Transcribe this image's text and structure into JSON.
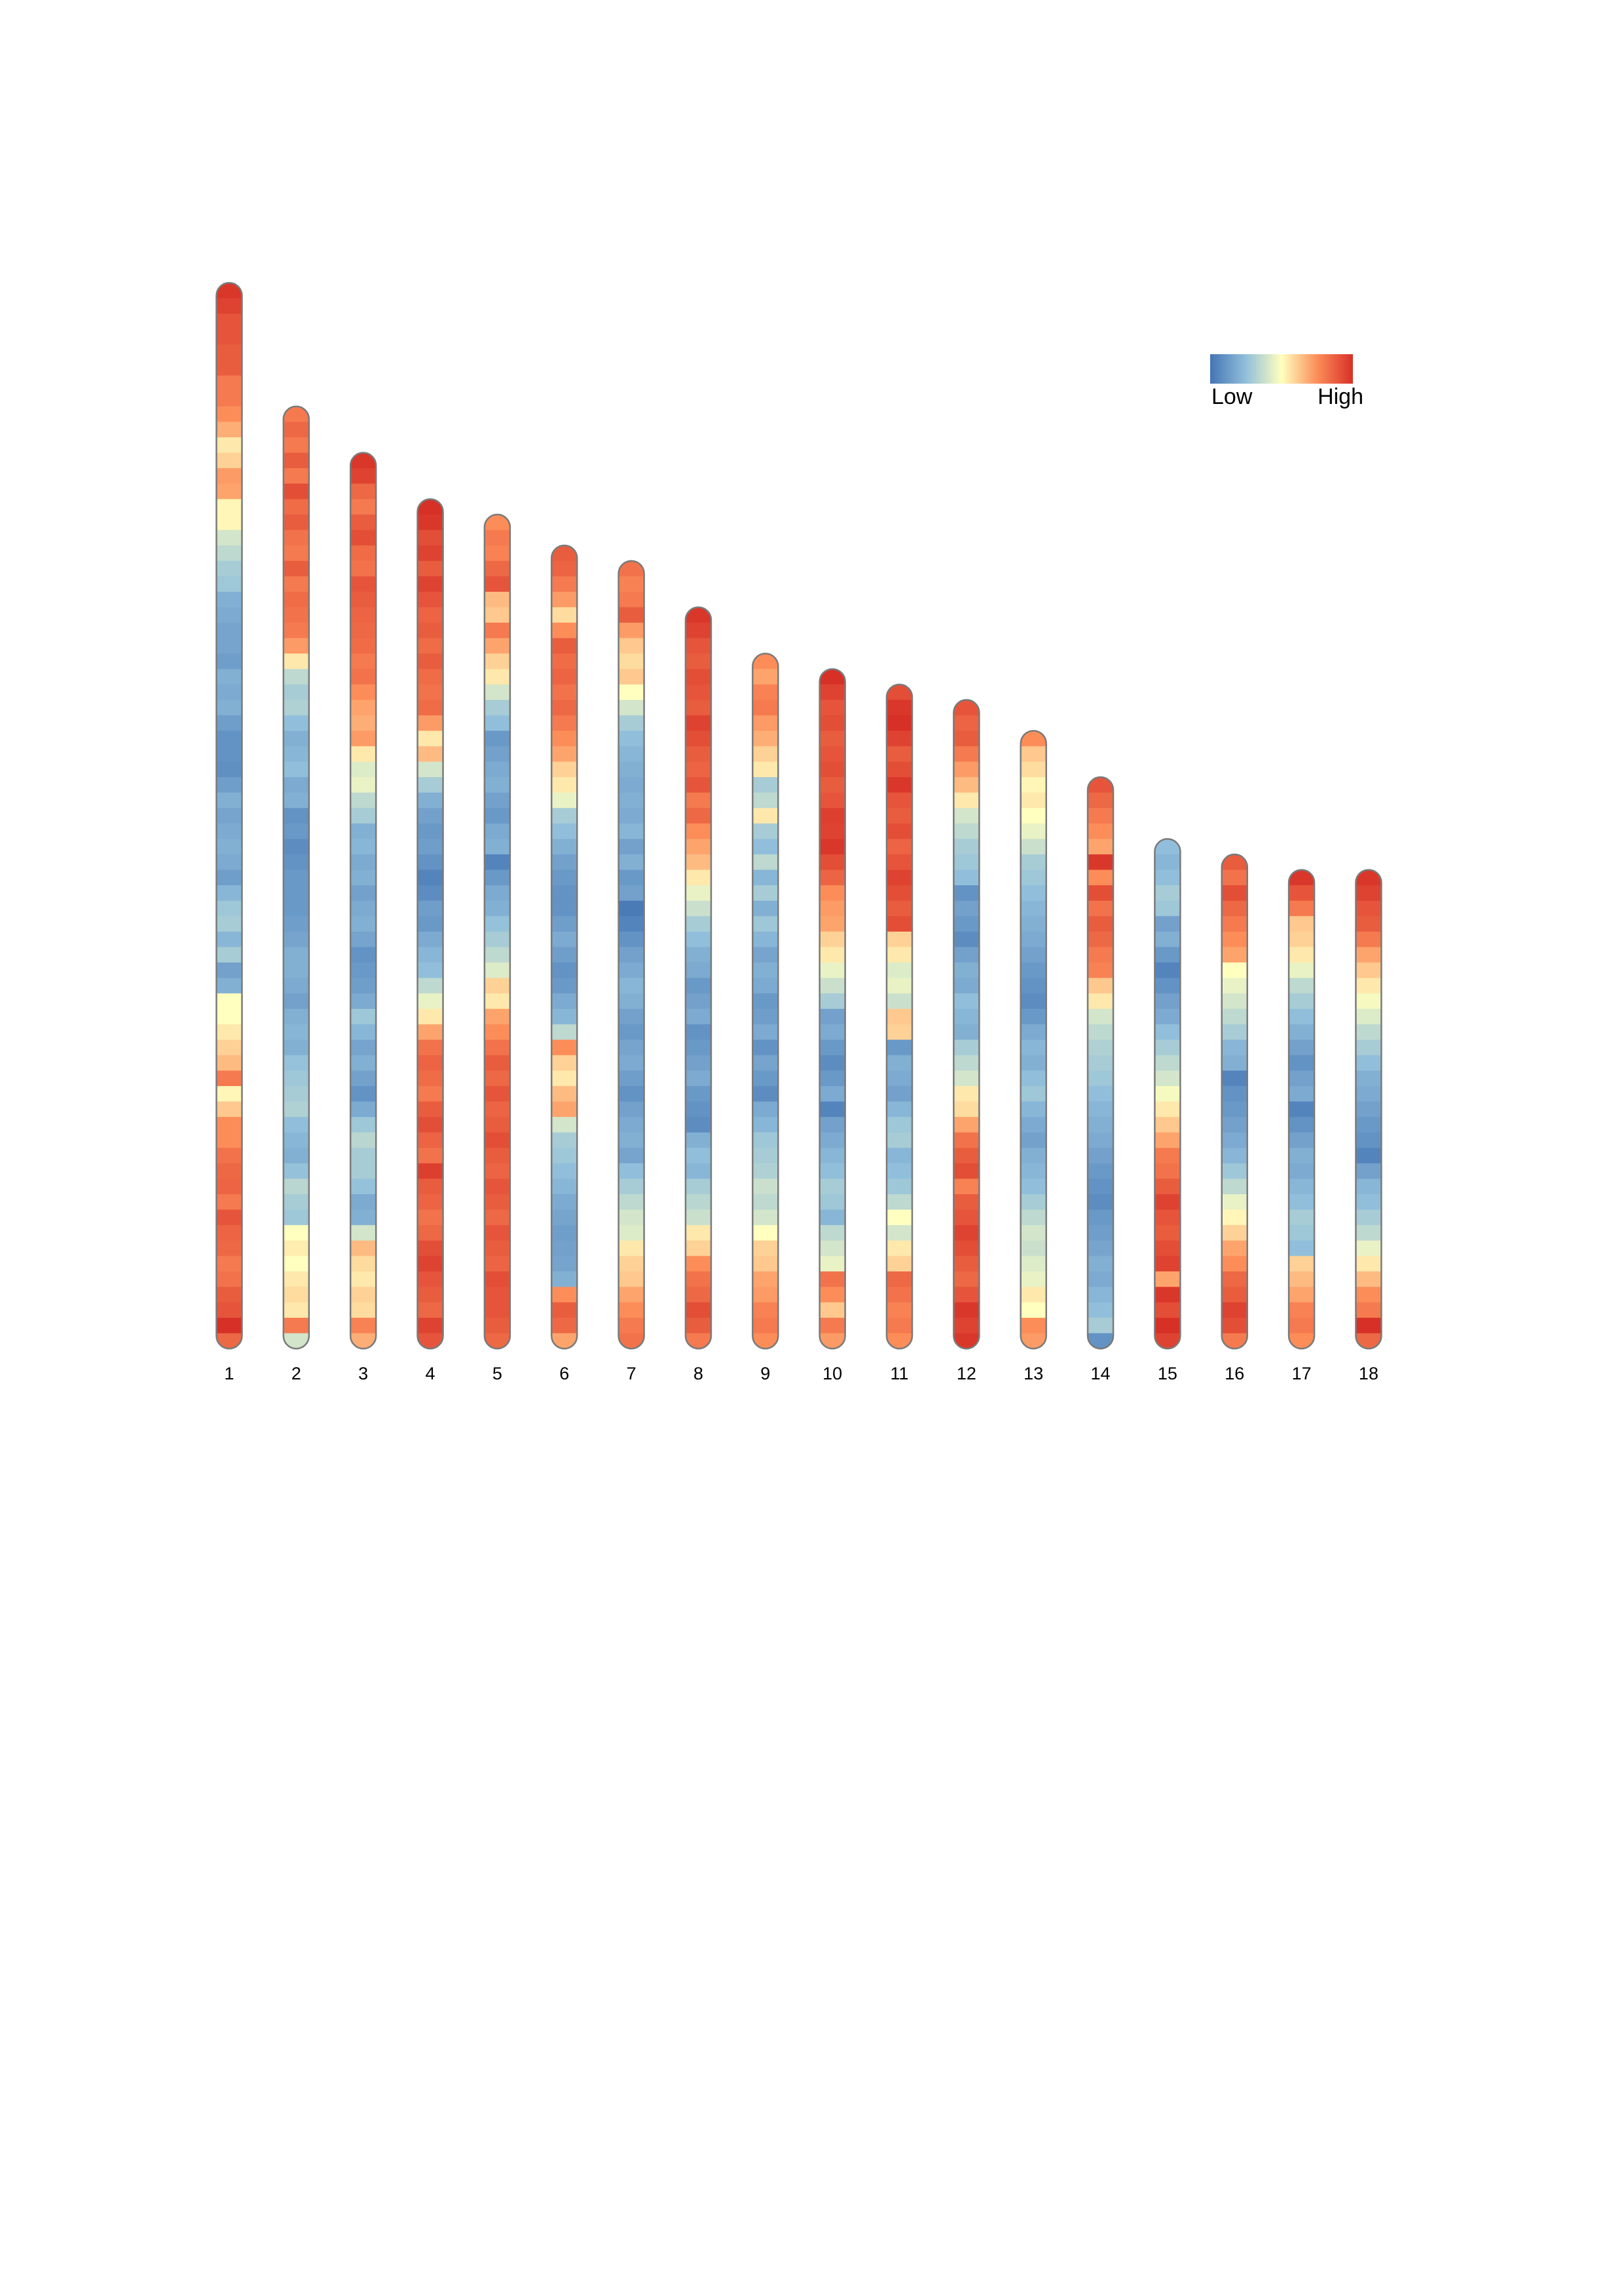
{
  "chart_data": {
    "type": "heatmap",
    "title": "",
    "chromosomes": [
      {
        "label": "1",
        "length": 69,
        "values": [
          0.98,
          0.95,
          0.9,
          0.9,
          0.88,
          0.88,
          0.8,
          0.8,
          0.75,
          0.68,
          0.55,
          0.6,
          0.72,
          0.7,
          0.52,
          0.52,
          0.4,
          0.35,
          0.3,
          0.28,
          0.2,
          0.18,
          0.16,
          0.16,
          0.14,
          0.2,
          0.18,
          0.2,
          0.14,
          0.1,
          0.1,
          0.09,
          0.14,
          0.2,
          0.16,
          0.18,
          0.2,
          0.18,
          0.14,
          0.22,
          0.28,
          0.3,
          0.22,
          0.3,
          0.15,
          0.2,
          0.5,
          0.5,
          0.55,
          0.6,
          0.65,
          0.8,
          0.52,
          0.62,
          0.75,
          0.75,
          0.82,
          0.85,
          0.86,
          0.8,
          0.9,
          0.86,
          0.85,
          0.8,
          0.82,
          0.88,
          0.9,
          1.0,
          0.85
        ]
      },
      {
        "label": "2",
        "length": 61,
        "values": [
          0.8,
          0.85,
          0.8,
          0.88,
          0.8,
          0.92,
          0.84,
          0.88,
          0.82,
          0.8,
          0.88,
          0.8,
          0.84,
          0.82,
          0.8,
          0.72,
          0.55,
          0.35,
          0.3,
          0.32,
          0.25,
          0.2,
          0.22,
          0.25,
          0.18,
          0.2,
          0.1,
          0.12,
          0.08,
          0.1,
          0.12,
          0.12,
          0.12,
          0.14,
          0.16,
          0.2,
          0.2,
          0.18,
          0.15,
          0.2,
          0.22,
          0.2,
          0.26,
          0.28,
          0.3,
          0.32,
          0.25,
          0.22,
          0.2,
          0.26,
          0.34,
          0.3,
          0.28,
          0.5,
          0.54,
          0.5,
          0.55,
          0.58,
          0.55,
          0.8,
          0.4
        ]
      },
      {
        "label": "3",
        "length": 58,
        "values": [
          0.98,
          0.95,
          0.85,
          0.8,
          0.88,
          0.92,
          0.84,
          0.82,
          0.9,
          0.88,
          0.86,
          0.85,
          0.84,
          0.8,
          0.82,
          0.75,
          0.7,
          0.68,
          0.72,
          0.55,
          0.42,
          0.45,
          0.35,
          0.3,
          0.2,
          0.22,
          0.18,
          0.2,
          0.15,
          0.18,
          0.2,
          0.16,
          0.1,
          0.12,
          0.14,
          0.18,
          0.28,
          0.22,
          0.16,
          0.2,
          0.15,
          0.1,
          0.18,
          0.28,
          0.34,
          0.3,
          0.3,
          0.26,
          0.18,
          0.2,
          0.4,
          0.65,
          0.58,
          0.55,
          0.6,
          0.58,
          0.78,
          0.68
        ]
      },
      {
        "label": "4",
        "length": 55,
        "values": [
          1.0,
          0.98,
          0.92,
          0.95,
          0.88,
          0.95,
          0.9,
          0.86,
          0.88,
          0.84,
          0.88,
          0.84,
          0.82,
          0.84,
          0.72,
          0.55,
          0.65,
          0.4,
          0.3,
          0.2,
          0.15,
          0.12,
          0.14,
          0.1,
          0.05,
          0.08,
          0.14,
          0.12,
          0.18,
          0.22,
          0.25,
          0.35,
          0.45,
          0.55,
          0.7,
          0.82,
          0.86,
          0.84,
          0.8,
          0.88,
          0.92,
          0.86,
          0.82,
          0.96,
          0.88,
          0.86,
          0.82,
          0.85,
          0.92,
          0.95,
          0.9,
          0.88,
          0.85,
          0.95,
          0.9
        ]
      },
      {
        "label": "5",
        "length": 54,
        "values": [
          0.75,
          0.8,
          0.78,
          0.85,
          0.9,
          0.65,
          0.62,
          0.8,
          0.7,
          0.6,
          0.55,
          0.4,
          0.3,
          0.25,
          0.12,
          0.15,
          0.18,
          0.2,
          0.15,
          0.12,
          0.18,
          0.2,
          0.05,
          0.12,
          0.18,
          0.2,
          0.26,
          0.3,
          0.35,
          0.42,
          0.6,
          0.55,
          0.7,
          0.75,
          0.82,
          0.88,
          0.85,
          0.9,
          0.86,
          0.88,
          0.92,
          0.88,
          0.86,
          0.9,
          0.88,
          0.85,
          0.9,
          0.88,
          0.86,
          0.92,
          0.9,
          0.9,
          0.88,
          0.85
        ]
      },
      {
        "label": "6",
        "length": 52,
        "values": [
          0.88,
          0.86,
          0.8,
          0.72,
          0.58,
          0.75,
          0.88,
          0.84,
          0.86,
          0.82,
          0.85,
          0.8,
          0.75,
          0.7,
          0.6,
          0.55,
          0.45,
          0.3,
          0.25,
          0.2,
          0.15,
          0.12,
          0.1,
          0.1,
          0.14,
          0.18,
          0.14,
          0.1,
          0.12,
          0.18,
          0.22,
          0.35,
          0.75,
          0.6,
          0.55,
          0.65,
          0.7,
          0.4,
          0.3,
          0.28,
          0.25,
          0.22,
          0.18,
          0.16,
          0.14,
          0.15,
          0.16,
          0.2,
          0.75,
          0.88,
          0.85,
          0.7
        ]
      },
      {
        "label": "7",
        "length": 51,
        "values": [
          0.82,
          0.78,
          0.8,
          0.88,
          0.72,
          0.62,
          0.58,
          0.62,
          0.5,
          0.4,
          0.3,
          0.25,
          0.22,
          0.2,
          0.18,
          0.2,
          0.18,
          0.22,
          0.15,
          0.2,
          0.12,
          0.15,
          0.02,
          0.05,
          0.1,
          0.15,
          0.18,
          0.22,
          0.2,
          0.15,
          0.12,
          0.16,
          0.18,
          0.14,
          0.1,
          0.15,
          0.18,
          0.2,
          0.16,
          0.25,
          0.3,
          0.35,
          0.4,
          0.42,
          0.55,
          0.6,
          0.62,
          0.7,
          0.75,
          0.8,
          0.82
        ]
      },
      {
        "label": "8",
        "length": 48,
        "values": [
          0.98,
          0.95,
          0.9,
          0.88,
          0.92,
          0.9,
          0.88,
          0.95,
          0.92,
          0.88,
          0.86,
          0.9,
          0.8,
          0.85,
          0.75,
          0.7,
          0.65,
          0.55,
          0.45,
          0.38,
          0.3,
          0.25,
          0.2,
          0.18,
          0.12,
          0.15,
          0.18,
          0.1,
          0.12,
          0.15,
          0.18,
          0.12,
          0.1,
          0.08,
          0.2,
          0.25,
          0.22,
          0.3,
          0.34,
          0.38,
          0.55,
          0.6,
          0.75,
          0.82,
          0.85,
          0.92,
          0.88,
          0.8
        ]
      },
      {
        "label": "9",
        "length": 45,
        "values": [
          0.75,
          0.7,
          0.78,
          0.8,
          0.72,
          0.68,
          0.6,
          0.55,
          0.3,
          0.35,
          0.55,
          0.3,
          0.25,
          0.35,
          0.22,
          0.3,
          0.2,
          0.28,
          0.22,
          0.16,
          0.2,
          0.18,
          0.12,
          0.14,
          0.18,
          0.1,
          0.16,
          0.12,
          0.08,
          0.18,
          0.22,
          0.28,
          0.3,
          0.32,
          0.38,
          0.35,
          0.4,
          0.5,
          0.6,
          0.62,
          0.7,
          0.72,
          0.78,
          0.8,
          0.75
        ]
      },
      {
        "label": "10",
        "length": 44,
        "values": [
          1.0,
          0.95,
          0.9,
          0.92,
          0.88,
          0.9,
          0.92,
          0.88,
          0.9,
          0.96,
          0.95,
          0.98,
          0.92,
          0.86,
          0.75,
          0.72,
          0.7,
          0.6,
          0.55,
          0.45,
          0.38,
          0.3,
          0.15,
          0.18,
          0.12,
          0.08,
          0.12,
          0.18,
          0.05,
          0.15,
          0.18,
          0.22,
          0.25,
          0.3,
          0.28,
          0.22,
          0.35,
          0.4,
          0.45,
          0.82,
          0.75,
          0.62,
          0.8,
          0.72
        ]
      },
      {
        "label": "11",
        "length": 43,
        "values": [
          0.92,
          0.98,
          1.0,
          0.95,
          0.88,
          0.92,
          0.98,
          0.9,
          0.88,
          0.92,
          0.86,
          0.9,
          0.95,
          0.92,
          0.88,
          0.92,
          0.6,
          0.55,
          0.42,
          0.45,
          0.38,
          0.62,
          0.6,
          0.12,
          0.2,
          0.18,
          0.15,
          0.22,
          0.28,
          0.3,
          0.22,
          0.25,
          0.28,
          0.35,
          0.5,
          0.4,
          0.55,
          0.6,
          0.85,
          0.82,
          0.78,
          0.8,
          0.75
        ]
      },
      {
        "label": "12",
        "length": 42,
        "values": [
          0.9,
          0.86,
          0.88,
          0.8,
          0.72,
          0.65,
          0.55,
          0.4,
          0.35,
          0.3,
          0.28,
          0.25,
          0.1,
          0.15,
          0.12,
          0.08,
          0.15,
          0.2,
          0.18,
          0.25,
          0.22,
          0.2,
          0.3,
          0.35,
          0.4,
          0.55,
          0.58,
          0.7,
          0.82,
          0.88,
          0.92,
          0.78,
          0.88,
          0.9,
          0.95,
          0.92,
          0.88,
          0.85,
          0.9,
          0.98,
          0.95,
          0.98
        ]
      },
      {
        "label": "13",
        "length": 40,
        "values": [
          0.75,
          0.62,
          0.58,
          0.52,
          0.55,
          0.5,
          0.45,
          0.38,
          0.3,
          0.28,
          0.25,
          0.22,
          0.2,
          0.18,
          0.15,
          0.12,
          0.1,
          0.08,
          0.12,
          0.18,
          0.22,
          0.2,
          0.25,
          0.28,
          0.22,
          0.18,
          0.15,
          0.2,
          0.22,
          0.25,
          0.3,
          0.35,
          0.4,
          0.38,
          0.42,
          0.45,
          0.55,
          0.5,
          0.75,
          0.72
        ]
      },
      {
        "label": "14",
        "length": 37,
        "values": [
          0.9,
          0.85,
          0.8,
          0.75,
          0.7,
          0.98,
          0.75,
          0.92,
          0.82,
          0.88,
          0.85,
          0.8,
          0.78,
          0.62,
          0.55,
          0.4,
          0.35,
          0.32,
          0.3,
          0.28,
          0.25,
          0.22,
          0.2,
          0.18,
          0.15,
          0.12,
          0.1,
          0.08,
          0.12,
          0.14,
          0.16,
          0.2,
          0.18,
          0.22,
          0.25,
          0.3,
          0.1
        ]
      },
      {
        "label": "15",
        "length": 33,
        "values": [
          0.25,
          0.22,
          0.25,
          0.3,
          0.28,
          0.15,
          0.2,
          0.12,
          0.05,
          0.1,
          0.15,
          0.18,
          0.25,
          0.3,
          0.35,
          0.4,
          0.48,
          0.55,
          0.62,
          0.7,
          0.8,
          0.82,
          0.88,
          0.95,
          0.9,
          0.88,
          0.92,
          0.95,
          0.7,
          0.98,
          0.92,
          1.0,
          0.95
        ]
      },
      {
        "label": "16",
        "length": 32,
        "values": [
          0.88,
          0.82,
          0.92,
          0.85,
          0.8,
          0.75,
          0.7,
          0.5,
          0.45,
          0.4,
          0.35,
          0.3,
          0.22,
          0.2,
          0.05,
          0.1,
          0.12,
          0.15,
          0.18,
          0.22,
          0.28,
          0.35,
          0.45,
          0.52,
          0.6,
          0.7,
          0.75,
          0.85,
          0.88,
          0.95,
          0.92,
          0.8
        ]
      },
      {
        "label": "17",
        "length": 31,
        "values": [
          0.98,
          0.9,
          0.8,
          0.62,
          0.6,
          0.55,
          0.45,
          0.35,
          0.3,
          0.25,
          0.2,
          0.15,
          0.1,
          0.15,
          0.18,
          0.05,
          0.1,
          0.15,
          0.2,
          0.18,
          0.22,
          0.25,
          0.3,
          0.28,
          0.25,
          0.6,
          0.65,
          0.7,
          0.78,
          0.8,
          0.75
        ]
      },
      {
        "label": "18",
        "length": 31,
        "values": [
          0.98,
          0.95,
          0.9,
          0.88,
          0.8,
          0.7,
          0.62,
          0.55,
          0.48,
          0.42,
          0.35,
          0.3,
          0.25,
          0.2,
          0.18,
          0.15,
          0.12,
          0.1,
          0.05,
          0.15,
          0.22,
          0.25,
          0.3,
          0.35,
          0.45,
          0.55,
          0.65,
          0.75,
          0.8,
          1.0,
          0.85
        ]
      }
    ],
    "legend": {
      "low_label": "Low",
      "high_label": "High",
      "position": "top-right",
      "colors": [
        "#4575b4",
        "#91bfdb",
        "#ffffbf",
        "#fc8d59",
        "#d73027"
      ]
    }
  }
}
